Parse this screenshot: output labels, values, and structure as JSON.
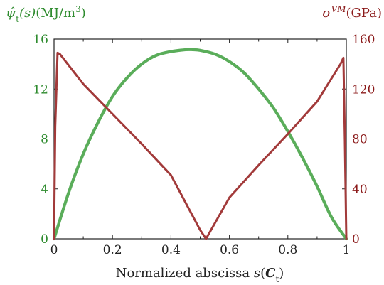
{
  "colors": {
    "left": "#2e8b2e",
    "right": "#8b1a1a",
    "axis": "#222222",
    "green_series": "#5aad5a",
    "red_series": "#a23a3a"
  },
  "chart_data": {
    "type": "line",
    "x_axis": {
      "label_text": "Normalized abscissa",
      "label_math": "s",
      "label_math_bold": "C",
      "label_math_sub": "t",
      "range": [
        0,
        1
      ],
      "ticks": [
        "0",
        "0.2",
        "0.4",
        "0.6",
        "0.8",
        "1"
      ],
      "tick_values": [
        0,
        0.2,
        0.4,
        0.6,
        0.8,
        1.0
      ]
    },
    "y_left": {
      "label_symbol": "ψ̂",
      "label_sub": "t",
      "label_arg": "(s)",
      "label_units": "(MJ/m",
      "label_units_sup": "3",
      "label_units_close": ")",
      "range": [
        0,
        16
      ],
      "ticks": [
        "0",
        "4",
        "8",
        "12",
        "16"
      ],
      "tick_values": [
        0,
        4,
        8,
        12,
        16
      ]
    },
    "y_right": {
      "label_symbol": "σ",
      "label_sup": "VM",
      "label_units": "(GPa)",
      "range": [
        0,
        160
      ],
      "ticks": [
        "0",
        "40",
        "80",
        "120",
        "160"
      ],
      "tick_values": [
        0,
        40,
        80,
        120,
        160
      ]
    },
    "grid": false,
    "series": [
      {
        "axis": "left",
        "x": [
          0,
          0.05,
          0.1,
          0.15,
          0.2,
          0.25,
          0.3,
          0.35,
          0.4,
          0.45,
          0.475,
          0.5,
          0.55,
          0.6,
          0.65,
          0.7,
          0.75,
          0.8,
          0.85,
          0.9,
          0.95,
          1.0
        ],
        "y": [
          0,
          3.7,
          6.8,
          9.3,
          11.4,
          12.9,
          14.0,
          14.7,
          15.0,
          15.15,
          15.15,
          15.1,
          14.8,
          14.2,
          13.3,
          12.0,
          10.5,
          8.6,
          6.5,
          4.2,
          1.7,
          0
        ]
      },
      {
        "axis": "right",
        "x": [
          0,
          0.004,
          0.012,
          0.02,
          0.1,
          0.2,
          0.3,
          0.4,
          0.5,
          0.52,
          0.6,
          0.7,
          0.8,
          0.9,
          0.98,
          0.99,
          0.995,
          1.0
        ],
        "y": [
          0,
          90,
          149,
          148,
          124,
          100,
          76,
          51,
          7,
          0,
          33,
          59,
          84,
          110,
          140,
          145,
          80,
          0
        ]
      }
    ]
  }
}
